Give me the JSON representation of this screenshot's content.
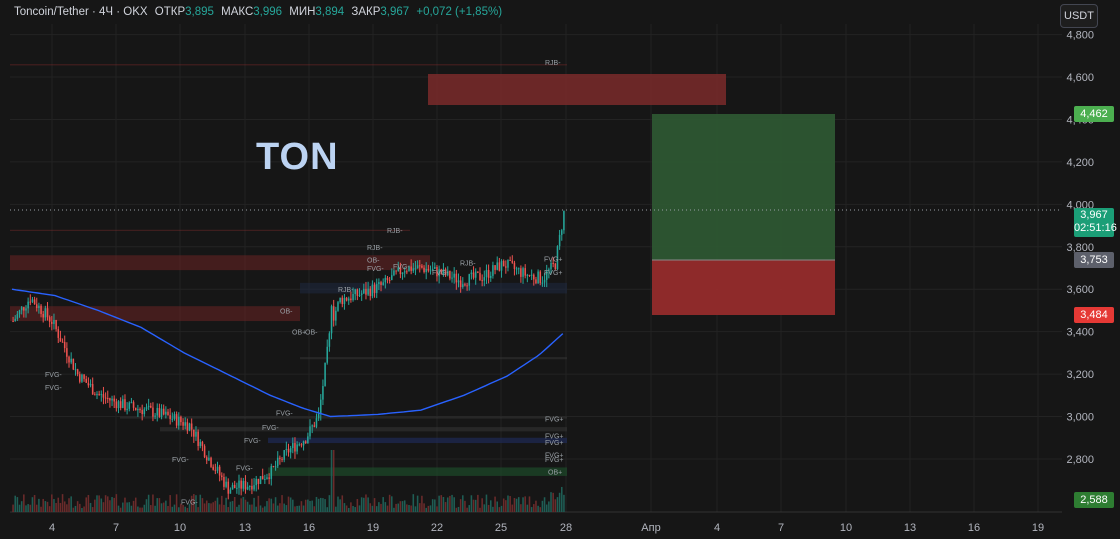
{
  "header": {
    "symbol": "Toncoin/Tether · 4Ч · OKX",
    "open_label": "ОТКР",
    "open": "3,895",
    "high_label": "МАКС",
    "high": "3,996",
    "low_label": "МИН",
    "low": "3,894",
    "close_label": "ЗАКР",
    "close": "3,967",
    "change": "+0,072 (+1,85%)"
  },
  "currency_button": "USDT",
  "annotation_text": "TON",
  "price_tags": {
    "target": "4,462",
    "current": "3,967",
    "countdown": "02:51:16",
    "entry": "3,753",
    "stop": "3,484",
    "low": "2,588"
  },
  "colors": {
    "bull": "#26a69a",
    "bear": "#ef5350",
    "ma": "#2962ff",
    "profit_zone": "#2e5a35",
    "loss_zone": "#8c2a2a",
    "upper_zone": "#6e2525"
  },
  "chart_data": {
    "type": "candlestick",
    "title": "",
    "x_ticks": [
      "4",
      "7",
      "10",
      "13",
      "16",
      "19",
      "22",
      "25",
      "28",
      "Апр",
      "4",
      "7",
      "10",
      "13",
      "16",
      "19"
    ],
    "y_ticks": [
      "2,800",
      "3,000",
      "3,200",
      "3,400",
      "3,600",
      "3,800",
      "4,000",
      "4,200",
      "4,400",
      "4,600",
      "4,800"
    ],
    "y_range": [
      2.55,
      4.85
    ],
    "zone_labels": [
      {
        "text": "RJB-",
        "price": 4.67
      },
      {
        "text": "RJB-",
        "price": 3.88
      },
      {
        "text": "RJB-",
        "price": 3.8
      },
      {
        "text": "OB-",
        "price": 3.74
      },
      {
        "text": "FVG-",
        "price": 3.7
      },
      {
        "text": "FVG-",
        "price": 3.71
      },
      {
        "text": "RJB-",
        "price": 3.725
      },
      {
        "text": "FVG-",
        "price": 3.68
      },
      {
        "text": "FVG+",
        "price": 3.745
      },
      {
        "text": "FVG+",
        "price": 3.68
      },
      {
        "text": "RJB-",
        "price": 3.6
      },
      {
        "text": "OB-",
        "price": 3.5
      },
      {
        "text": "OB+",
        "price": 3.4
      },
      {
        "text": "OB-",
        "price": 3.4
      },
      {
        "text": "FVG-",
        "price": 3.2
      },
      {
        "text": "FVG-",
        "price": 3.14
      },
      {
        "text": "FVG-",
        "price": 3.02
      },
      {
        "text": "FVG-",
        "price": 2.95
      },
      {
        "text": "FVG-",
        "price": 2.89
      },
      {
        "text": "FVG-",
        "price": 2.8
      },
      {
        "text": "FVG-",
        "price": 2.76
      },
      {
        "text": "FVG-",
        "price": 2.6
      },
      {
        "text": "FVG+",
        "price": 2.99
      },
      {
        "text": "FVG+",
        "price": 2.91
      },
      {
        "text": "FVG+",
        "price": 2.88
      },
      {
        "text": "FVG+",
        "price": 2.82
      },
      {
        "text": "FVG+",
        "price": 2.8
      },
      {
        "text": "OB+",
        "price": 2.74
      }
    ]
  }
}
